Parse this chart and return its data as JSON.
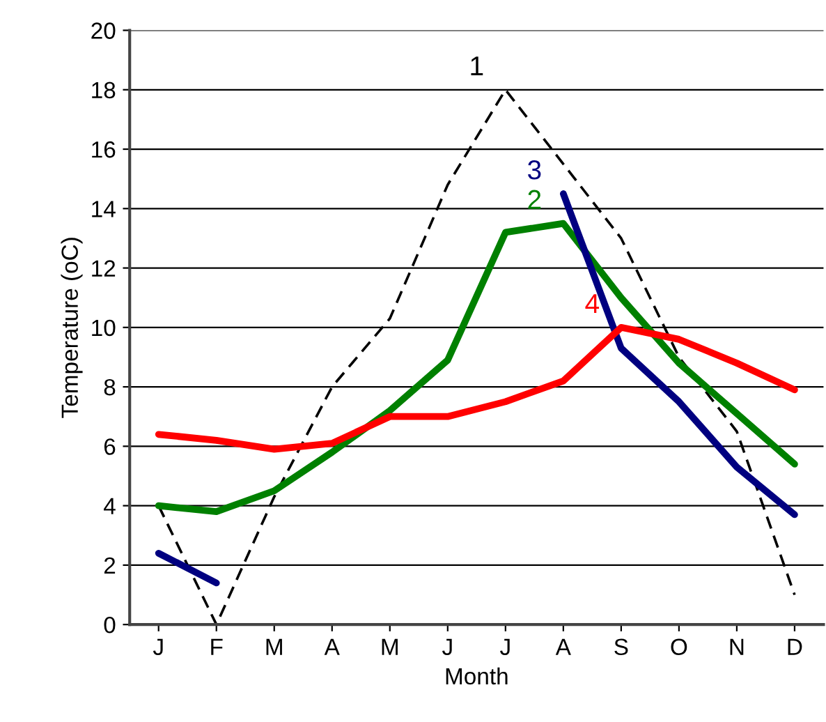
{
  "chart_data": {
    "type": "line",
    "xlabel": "Month",
    "ylabel": "Temperature (oC)",
    "categories": [
      "J",
      "F",
      "M",
      "A",
      "M",
      "J",
      "J",
      "A",
      "S",
      "O",
      "N",
      "D"
    ],
    "series": [
      {
        "name": "1",
        "color": "#000000",
        "line_style": "dashed",
        "values": [
          4.0,
          0.0,
          4.3,
          8.0,
          10.3,
          14.8,
          18.0,
          15.5,
          13.0,
          9.0,
          6.5,
          1.0
        ]
      },
      {
        "name": "2",
        "color": "#008000",
        "values": [
          4.0,
          3.8,
          4.5,
          5.8,
          7.2,
          8.9,
          13.2,
          13.5,
          11.0,
          8.8,
          7.1,
          5.4
        ]
      },
      {
        "name": "3",
        "color": "#000080",
        "values": [
          2.4,
          1.4,
          null,
          null,
          null,
          null,
          null,
          14.5,
          9.3,
          7.5,
          5.3,
          3.7
        ]
      },
      {
        "name": "4",
        "color": "#ff0000",
        "values": [
          6.4,
          6.2,
          5.9,
          6.1,
          7.0,
          7.0,
          7.5,
          8.2,
          10.0,
          9.6,
          8.8,
          7.9
        ]
      }
    ],
    "ylim": [
      0,
      20
    ],
    "yticks": [
      0,
      2,
      4,
      6,
      8,
      10,
      12,
      14,
      16,
      18,
      20
    ],
    "grid": "y",
    "legend": false,
    "marker": "none",
    "line_style": "solid"
  }
}
